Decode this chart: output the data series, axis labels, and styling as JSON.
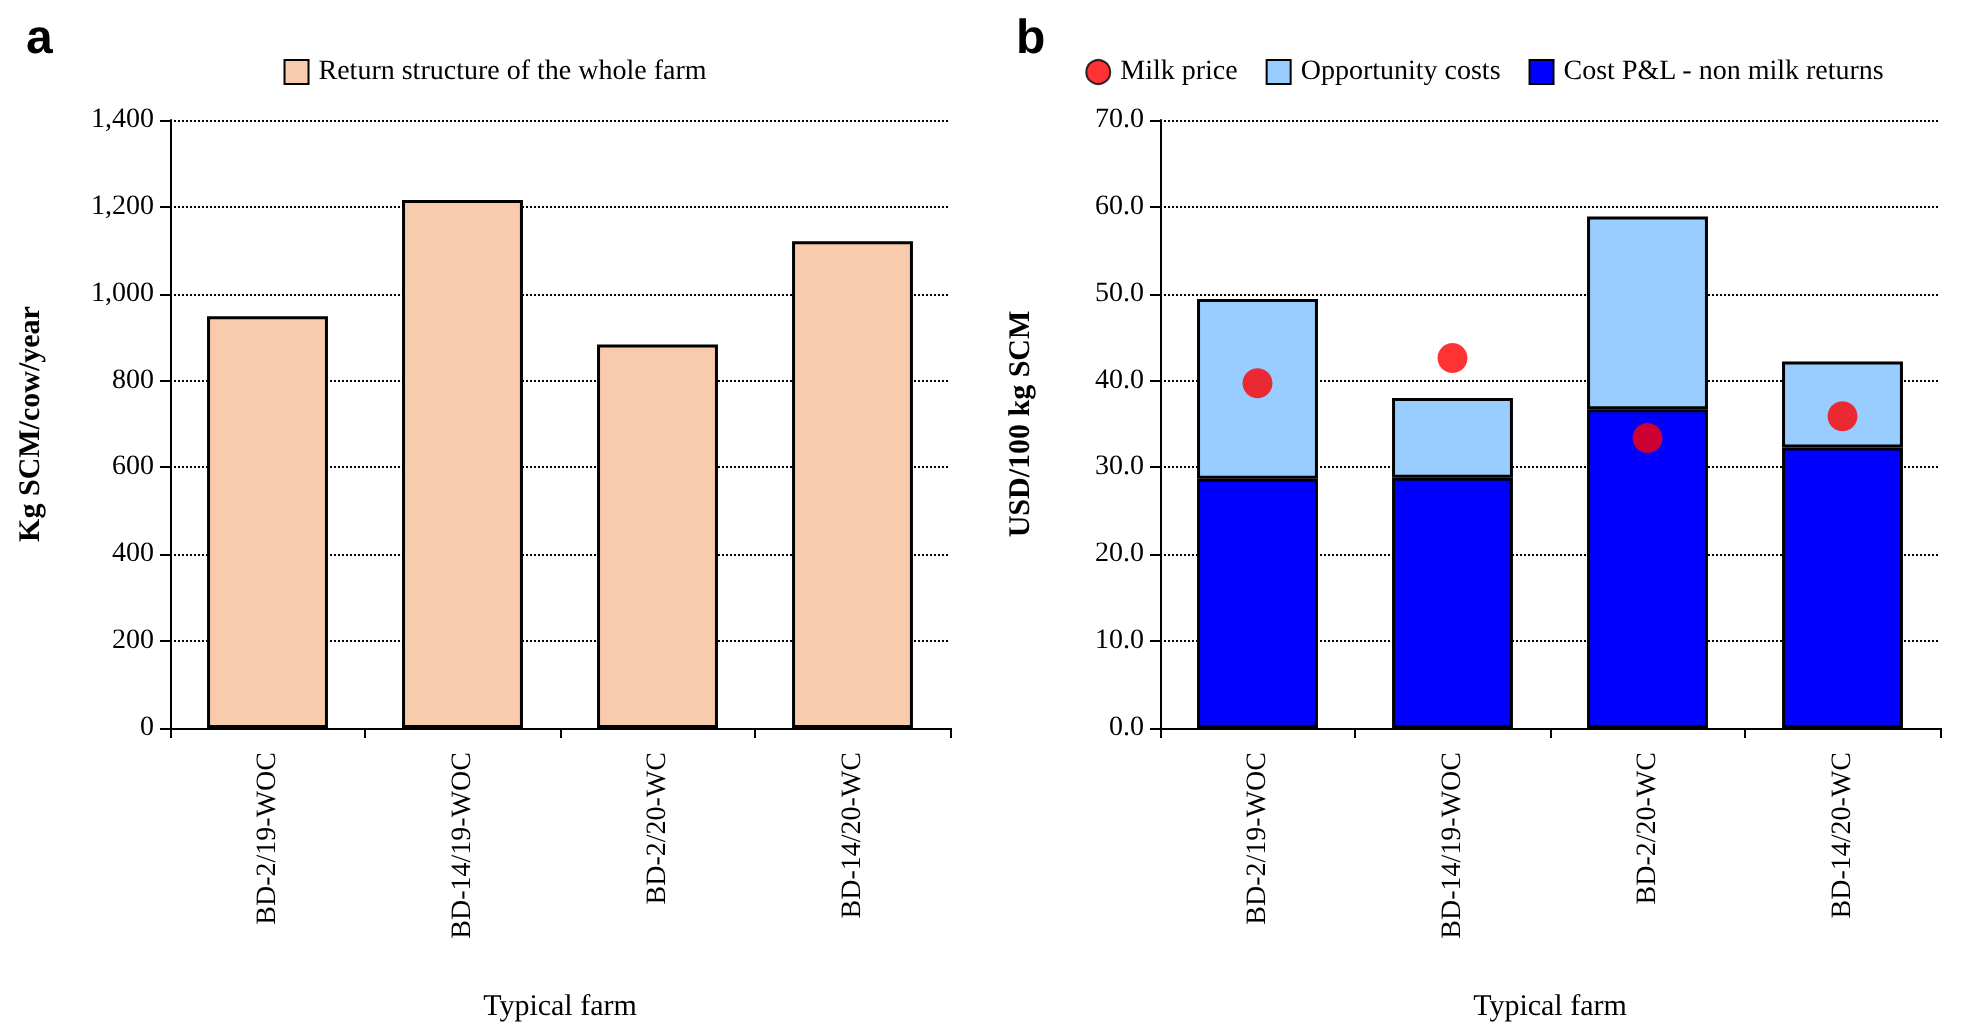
{
  "chart_data": [
    {
      "type": "bar",
      "title": "a",
      "xlabel": "Typical farm",
      "ylabel": "Kg SCM/cow/year",
      "categories": [
        "BD-2/19-WOC",
        "BD-14/19-WOC",
        "BD-2/20-WC",
        "BD-14/20-WC"
      ],
      "series": [
        {
          "name": "Return structure of the whole farm",
          "color": "#f8cbad",
          "values": [
            948,
            1216,
            883,
            1121
          ]
        }
      ],
      "ylim": [
        0,
        1400
      ],
      "yticks": [
        0,
        200,
        400,
        600,
        800,
        {
          "value": 1000,
          "label": "1,000"
        },
        {
          "value": 1200,
          "label": "1,200"
        },
        {
          "value": 1400,
          "label": "1,400"
        }
      ],
      "grid": "y",
      "legend": "top"
    },
    {
      "type": "bar",
      "title": "b",
      "xlabel": "Typical farm",
      "ylabel": "USD/100 kg SCM",
      "categories": [
        "BD-2/19-WOC",
        "BD-14/19-WOC",
        "BD-2/20-WC",
        "BD-14/20-WC"
      ],
      "stacked": true,
      "series": [
        {
          "name": "Cost P&L - non milk returns",
          "color": "#0000ff",
          "values": [
            28.7,
            28.8,
            36.7,
            32.3
          ]
        },
        {
          "name": "Opportunity costs",
          "color": "#99ccff",
          "values": [
            20.7,
            9.2,
            22.2,
            9.9
          ]
        },
        {
          "name": "Milk price",
          "type": "scatter",
          "color": "#ff0000",
          "values": [
            39.7,
            42.6,
            33.4,
            35.9
          ]
        }
      ],
      "marker": "circle",
      "ylim": [
        0,
        70
      ],
      "yticks": [
        {
          "value": 0,
          "label": "0.0"
        },
        {
          "value": 10,
          "label": "10.0"
        },
        {
          "value": 20,
          "label": "20.0"
        },
        {
          "value": 30,
          "label": "30.0"
        },
        {
          "value": 40,
          "label": "40.0"
        },
        {
          "value": 50,
          "label": "50.0"
        },
        {
          "value": 60,
          "label": "60.0"
        },
        {
          "value": 70,
          "label": "70.0"
        }
      ],
      "grid": "y",
      "legend": "top"
    }
  ]
}
